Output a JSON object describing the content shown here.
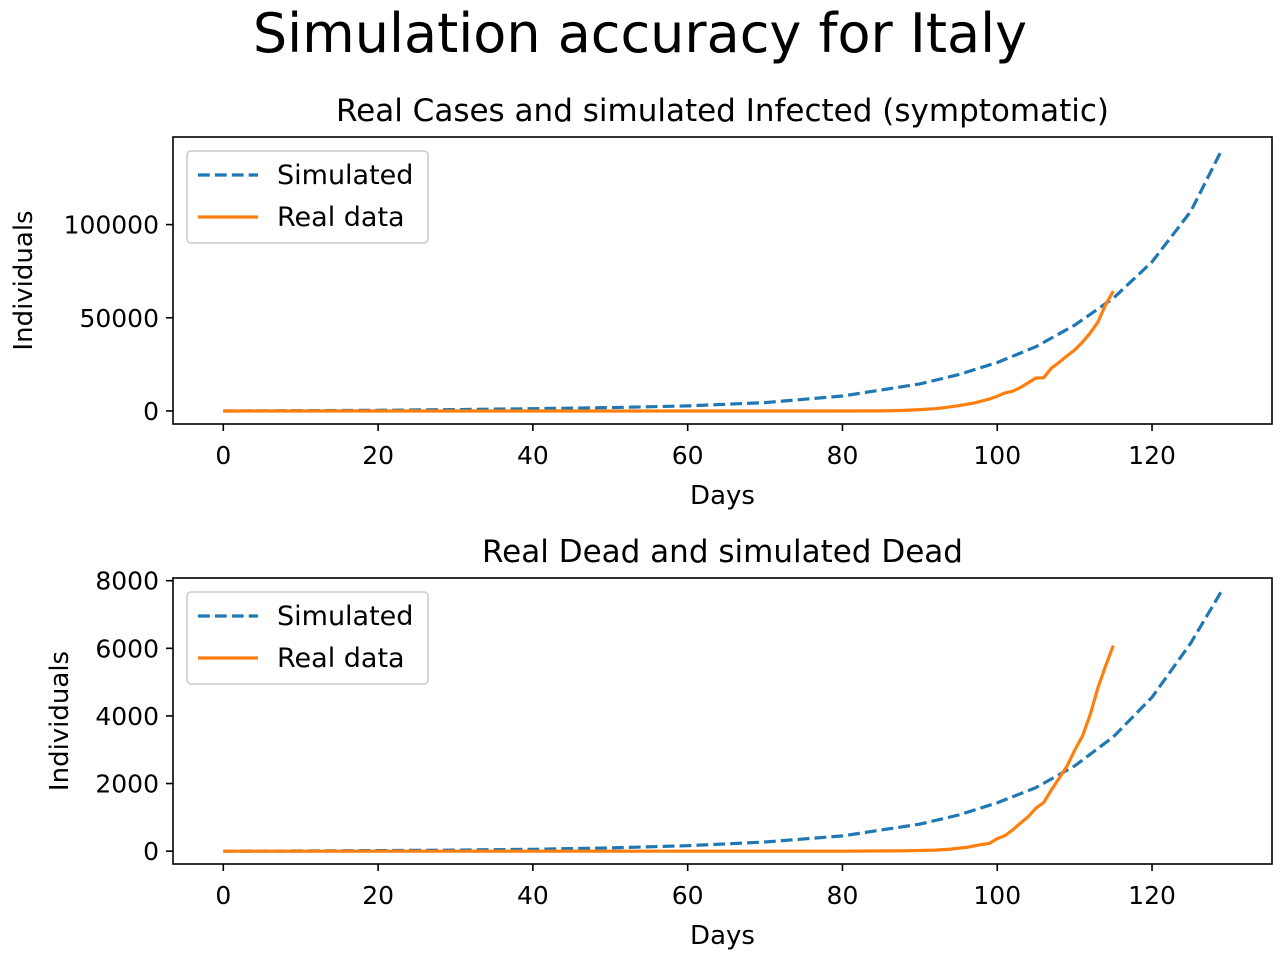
{
  "figure": {
    "title": "Simulation accuracy for Italy"
  },
  "colors": {
    "simulated": "#1f77b4",
    "real": "#ff7f0e"
  },
  "chart_data": [
    {
      "type": "line",
      "title": "Real Cases and simulated Infected (symptomatic)",
      "xlabel": "Days",
      "ylabel": "Individuals",
      "xlim": [
        -6.5,
        135.5
      ],
      "ylim": [
        -7000,
        147000
      ],
      "xticks": [
        0,
        20,
        40,
        60,
        80,
        100,
        120
      ],
      "yticks": [
        0,
        50000,
        100000
      ],
      "legend": "top-left",
      "grid": false,
      "series": [
        {
          "name": "Simulated",
          "style": "dashed",
          "color": "#1f77b4",
          "x": [
            0,
            10,
            20,
            30,
            40,
            50,
            60,
            70,
            80,
            90,
            95,
            100,
            105,
            110,
            115,
            120,
            125,
            129
          ],
          "y": [
            0,
            150,
            350,
            700,
            1200,
            1800,
            2700,
            4500,
            8000,
            14500,
            19500,
            26000,
            34500,
            46000,
            60500,
            80000,
            107000,
            140000
          ]
        },
        {
          "name": "Real data",
          "style": "solid",
          "color": "#ff7f0e",
          "x": [
            0,
            20,
            40,
            60,
            80,
            85,
            88,
            90,
            92,
            93,
            95,
            97,
            99,
            100,
            101,
            102,
            103,
            104,
            105,
            106,
            107,
            108,
            109,
            110,
            111,
            112,
            113,
            114,
            115
          ],
          "y": [
            0,
            0,
            0,
            0,
            0,
            50,
            300,
            700,
            1200,
            1700,
            2800,
            4200,
            6400,
            7900,
            9700,
            10600,
            12600,
            15100,
            17700,
            17800,
            23000,
            26100,
            29500,
            32700,
            36900,
            41700,
            47700,
            57000,
            64300
          ]
        }
      ]
    },
    {
      "type": "line",
      "title": "Real Dead and simulated Dead",
      "xlabel": "Days",
      "ylabel": "Individuals",
      "xlim": [
        -6.5,
        135.5
      ],
      "ylim": [
        -380,
        8080
      ],
      "xticks": [
        0,
        20,
        40,
        60,
        80,
        100,
        120
      ],
      "yticks": [
        0,
        2000,
        4000,
        6000,
        8000
      ],
      "legend": "top-left",
      "grid": false,
      "series": [
        {
          "name": "Simulated",
          "style": "dashed",
          "color": "#1f77b4",
          "x": [
            0,
            10,
            20,
            30,
            40,
            50,
            60,
            70,
            80,
            90,
            95,
            100,
            105,
            110,
            115,
            120,
            125,
            129
          ],
          "y": [
            0,
            5,
            15,
            30,
            55,
            95,
            160,
            270,
            450,
            800,
            1070,
            1430,
            1880,
            2520,
            3380,
            4550,
            6150,
            7700
          ]
        },
        {
          "name": "Real data",
          "style": "solid",
          "color": "#ff7f0e",
          "x": [
            0,
            20,
            40,
            60,
            80,
            88,
            92,
            94,
            96,
            98,
            99,
            100,
            101,
            102,
            103,
            104,
            105,
            106,
            107,
            108,
            109,
            110,
            111,
            112,
            113,
            114,
            115
          ],
          "y": [
            0,
            0,
            0,
            0,
            0,
            10,
            30,
            60,
            110,
            200,
            230,
            370,
            460,
            630,
            830,
            1020,
            1270,
            1440,
            1810,
            2160,
            2510,
            2980,
            3400,
            4030,
            4830,
            5480,
            6080
          ]
        }
      ]
    }
  ]
}
